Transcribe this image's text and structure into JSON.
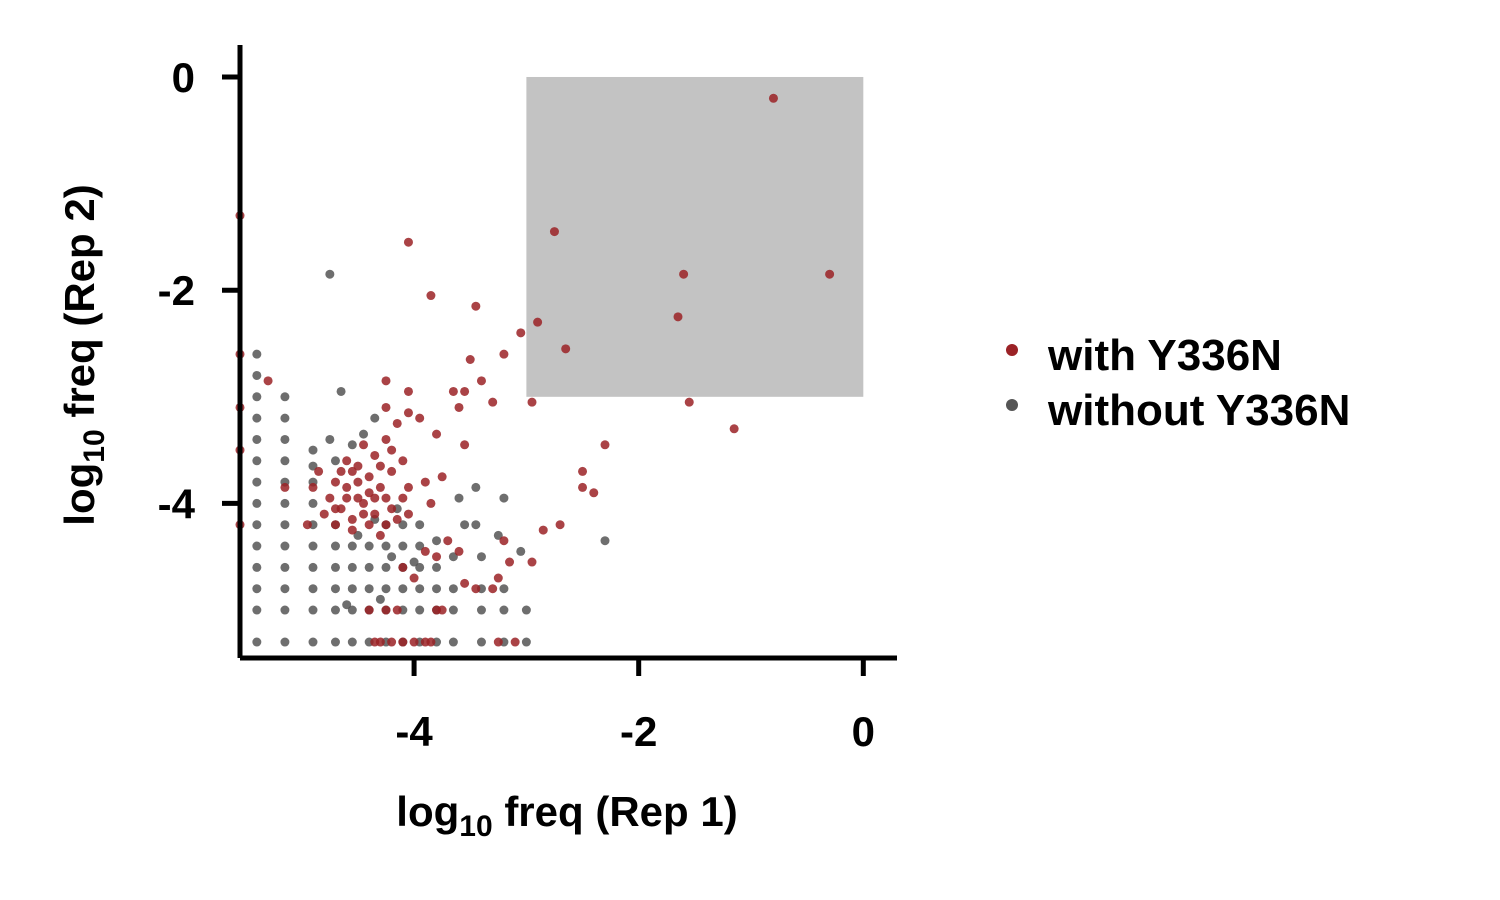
{
  "chart_data": {
    "type": "scatter",
    "xlabel": {
      "base": "log",
      "sub": "10",
      "rest": " freq (Rep 1)"
    },
    "ylabel": {
      "base": "log",
      "sub": "10",
      "rest": " freq (Rep 2)"
    },
    "xlim": [
      -5.55,
      0.3
    ],
    "ylim": [
      -5.45,
      0.3
    ],
    "x_ticks": [
      -4,
      -2,
      0
    ],
    "x_tick_labels": [
      "-4",
      "-2",
      "0"
    ],
    "y_ticks": [
      0,
      -2,
      -4
    ],
    "y_tick_labels": [
      "0",
      "-2",
      "-4"
    ],
    "grid": false,
    "legend_position": "right",
    "highlight_region": {
      "x": [
        -3.0,
        0.0
      ],
      "y": [
        -3.0,
        0.0
      ],
      "color": "#c3c3c3"
    },
    "series": [
      {
        "name": "without Y336N",
        "color": "#555555",
        "points": [
          [
            -5.4,
            -5.3
          ],
          [
            -5.4,
            -5.0
          ],
          [
            -5.4,
            -4.8
          ],
          [
            -5.4,
            -4.6
          ],
          [
            -5.4,
            -4.4
          ],
          [
            -5.4,
            -4.2
          ],
          [
            -5.4,
            -4.0
          ],
          [
            -5.4,
            -3.8
          ],
          [
            -5.4,
            -3.6
          ],
          [
            -5.4,
            -3.4
          ],
          [
            -5.4,
            -3.2
          ],
          [
            -5.4,
            -3.0
          ],
          [
            -5.4,
            -2.8
          ],
          [
            -5.4,
            -2.6
          ],
          [
            -5.15,
            -5.3
          ],
          [
            -5.15,
            -5.0
          ],
          [
            -5.15,
            -4.8
          ],
          [
            -5.15,
            -4.6
          ],
          [
            -5.15,
            -4.4
          ],
          [
            -5.15,
            -4.2
          ],
          [
            -5.15,
            -4.0
          ],
          [
            -5.15,
            -3.8
          ],
          [
            -5.15,
            -3.6
          ],
          [
            -5.15,
            -3.4
          ],
          [
            -5.15,
            -3.2
          ],
          [
            -5.15,
            -3.0
          ],
          [
            -4.9,
            -5.3
          ],
          [
            -4.9,
            -5.0
          ],
          [
            -4.9,
            -4.8
          ],
          [
            -4.9,
            -4.6
          ],
          [
            -4.9,
            -4.4
          ],
          [
            -4.9,
            -4.2
          ],
          [
            -4.9,
            -4.0
          ],
          [
            -4.9,
            -3.8
          ],
          [
            -4.9,
            -3.65
          ],
          [
            -4.9,
            -3.5
          ],
          [
            -4.7,
            -5.3
          ],
          [
            -4.7,
            -5.0
          ],
          [
            -4.7,
            -4.8
          ],
          [
            -4.7,
            -4.6
          ],
          [
            -4.7,
            -4.4
          ],
          [
            -4.7,
            -4.2
          ],
          [
            -4.7,
            -3.6
          ],
          [
            -4.75,
            -3.4
          ],
          [
            -4.55,
            -5.3
          ],
          [
            -4.55,
            -5.0
          ],
          [
            -4.55,
            -4.8
          ],
          [
            -4.55,
            -4.6
          ],
          [
            -4.55,
            -4.4
          ],
          [
            -4.4,
            -5.3
          ],
          [
            -4.4,
            -5.0
          ],
          [
            -4.4,
            -4.8
          ],
          [
            -4.4,
            -4.6
          ],
          [
            -4.4,
            -4.4
          ],
          [
            -4.25,
            -5.3
          ],
          [
            -4.25,
            -5.0
          ],
          [
            -4.25,
            -4.8
          ],
          [
            -4.25,
            -4.6
          ],
          [
            -4.25,
            -4.4
          ],
          [
            -4.25,
            -4.2
          ],
          [
            -4.1,
            -5.3
          ],
          [
            -4.1,
            -5.0
          ],
          [
            -4.1,
            -4.8
          ],
          [
            -4.1,
            -4.6
          ],
          [
            -4.1,
            -4.4
          ],
          [
            -4.1,
            -4.2
          ],
          [
            -3.95,
            -5.3
          ],
          [
            -3.95,
            -5.0
          ],
          [
            -3.95,
            -4.8
          ],
          [
            -3.95,
            -4.6
          ],
          [
            -3.95,
            -4.4
          ],
          [
            -3.95,
            -4.2
          ],
          [
            -3.8,
            -5.3
          ],
          [
            -3.8,
            -5.0
          ],
          [
            -3.8,
            -4.8
          ],
          [
            -3.8,
            -4.6
          ],
          [
            -3.8,
            -4.35
          ],
          [
            -3.65,
            -5.3
          ],
          [
            -3.65,
            -5.0
          ],
          [
            -3.65,
            -4.8
          ],
          [
            -3.65,
            -4.5
          ],
          [
            -3.55,
            -4.2
          ],
          [
            -3.6,
            -3.95
          ],
          [
            -3.4,
            -5.3
          ],
          [
            -3.4,
            -5.0
          ],
          [
            -3.4,
            -4.8
          ],
          [
            -3.4,
            -4.5
          ],
          [
            -3.45,
            -4.2
          ],
          [
            -3.45,
            -3.85
          ],
          [
            -3.2,
            -5.3
          ],
          [
            -3.2,
            -5.0
          ],
          [
            -3.2,
            -4.8
          ],
          [
            -3.25,
            -4.3
          ],
          [
            -3.2,
            -3.95
          ],
          [
            -3.0,
            -5.3
          ],
          [
            -3.0,
            -5.0
          ],
          [
            -3.05,
            -4.45
          ],
          [
            -2.3,
            -4.35
          ],
          [
            -4.75,
            -1.85
          ],
          [
            -4.65,
            -2.95
          ],
          [
            -4.35,
            -3.2
          ],
          [
            -4.55,
            -3.45
          ],
          [
            -4.45,
            -3.35
          ],
          [
            -4.6,
            -4.95
          ],
          [
            -4.3,
            -4.9
          ],
          [
            -4.2,
            -4.5
          ],
          [
            -4.0,
            -4.55
          ],
          [
            -4.35,
            -4.15
          ],
          [
            -4.5,
            -4.3
          ],
          [
            -4.15,
            -4.05
          ]
        ]
      },
      {
        "name": "with Y336N",
        "color": "#9b2226",
        "points": [
          [
            -0.8,
            -0.2
          ],
          [
            -0.3,
            -1.85
          ],
          [
            -1.6,
            -1.85
          ],
          [
            -1.65,
            -2.25
          ],
          [
            -2.75,
            -1.45
          ],
          [
            -2.9,
            -2.3
          ],
          [
            -2.65,
            -2.55
          ],
          [
            -4.05,
            -1.55
          ],
          [
            -3.85,
            -2.05
          ],
          [
            -3.45,
            -2.15
          ],
          [
            -3.05,
            -2.4
          ],
          [
            -3.2,
            -2.6
          ],
          [
            -3.5,
            -2.65
          ],
          [
            -3.4,
            -2.85
          ],
          [
            -3.65,
            -2.95
          ],
          [
            -3.55,
            -2.95
          ],
          [
            -3.6,
            -3.1
          ],
          [
            -3.3,
            -3.05
          ],
          [
            -4.25,
            -2.85
          ],
          [
            -4.05,
            -2.95
          ],
          [
            -2.95,
            -3.05
          ],
          [
            -1.55,
            -3.05
          ],
          [
            -1.15,
            -3.3
          ],
          [
            -2.3,
            -3.45
          ],
          [
            -2.5,
            -3.7
          ],
          [
            -2.5,
            -3.85
          ],
          [
            -2.4,
            -3.9
          ],
          [
            -2.7,
            -4.2
          ],
          [
            -2.85,
            -4.25
          ],
          [
            -3.2,
            -4.35
          ],
          [
            -2.95,
            -4.55
          ],
          [
            -3.15,
            -4.55
          ],
          [
            -3.25,
            -4.7
          ],
          [
            -3.55,
            -3.45
          ],
          [
            -3.8,
            -3.35
          ],
          [
            -3.95,
            -3.2
          ],
          [
            -4.05,
            -3.15
          ],
          [
            -4.15,
            -3.25
          ],
          [
            -4.25,
            -3.1
          ],
          [
            -5.55,
            -1.3
          ],
          [
            -5.55,
            -2.6
          ],
          [
            -5.55,
            -3.1
          ],
          [
            -5.55,
            -3.5
          ],
          [
            -5.55,
            -4.2
          ],
          [
            -5.3,
            -2.85
          ],
          [
            -5.15,
            -3.85
          ],
          [
            -4.9,
            -3.85
          ],
          [
            -4.95,
            -4.2
          ],
          [
            -4.7,
            -3.8
          ],
          [
            -4.6,
            -3.85
          ],
          [
            -4.5,
            -3.95
          ],
          [
            -4.4,
            -3.75
          ],
          [
            -4.3,
            -3.85
          ],
          [
            -4.2,
            -3.7
          ],
          [
            -4.65,
            -4.05
          ],
          [
            -4.55,
            -4.15
          ],
          [
            -4.45,
            -4.0
          ],
          [
            -4.35,
            -4.1
          ],
          [
            -4.25,
            -3.95
          ],
          [
            -4.6,
            -3.6
          ],
          [
            -4.5,
            -3.65
          ],
          [
            -4.35,
            -3.55
          ],
          [
            -4.2,
            -3.5
          ],
          [
            -4.1,
            -3.6
          ],
          [
            -4.05,
            -3.85
          ],
          [
            -4.75,
            -3.95
          ],
          [
            -4.7,
            -4.2
          ],
          [
            -4.55,
            -4.25
          ],
          [
            -4.4,
            -4.2
          ],
          [
            -4.3,
            -4.3
          ],
          [
            -4.15,
            -4.15
          ],
          [
            -4.65,
            -3.7
          ],
          [
            -4.45,
            -3.45
          ],
          [
            -4.25,
            -3.4
          ],
          [
            -4.1,
            -3.95
          ],
          [
            -4.05,
            -4.1
          ],
          [
            -4.8,
            -4.1
          ],
          [
            -4.85,
            -3.7
          ],
          [
            -4.4,
            -3.9
          ],
          [
            -4.5,
            -3.8
          ],
          [
            -4.6,
            -3.95
          ],
          [
            -4.7,
            -4.05
          ],
          [
            -4.3,
            -3.65
          ],
          [
            -4.2,
            -4.05
          ],
          [
            -4.55,
            -3.7
          ],
          [
            -4.35,
            -3.95
          ],
          [
            -4.45,
            -4.1
          ],
          [
            -4.25,
            -4.2
          ],
          [
            -3.9,
            -3.8
          ],
          [
            -3.75,
            -3.75
          ],
          [
            -3.85,
            -4.0
          ],
          [
            -3.7,
            -4.35
          ],
          [
            -3.6,
            -4.45
          ],
          [
            -3.8,
            -4.5
          ],
          [
            -3.55,
            -4.75
          ],
          [
            -3.45,
            -4.8
          ],
          [
            -3.3,
            -4.8
          ],
          [
            -3.25,
            -5.3
          ],
          [
            -3.1,
            -5.3
          ],
          [
            -4.35,
            -5.3
          ],
          [
            -4.2,
            -5.3
          ],
          [
            -4.1,
            -5.3
          ],
          [
            -4.0,
            -5.3
          ],
          [
            -3.9,
            -5.3
          ],
          [
            -3.85,
            -5.3
          ],
          [
            -4.3,
            -5.3
          ],
          [
            -4.15,
            -5.0
          ],
          [
            -4.25,
            -5.0
          ],
          [
            -3.8,
            -5.0
          ],
          [
            -3.75,
            -5.0
          ],
          [
            -4.4,
            -5.0
          ],
          [
            -4.1,
            -4.6
          ],
          [
            -4.0,
            -4.7
          ],
          [
            -3.9,
            -4.45
          ]
        ]
      }
    ]
  }
}
